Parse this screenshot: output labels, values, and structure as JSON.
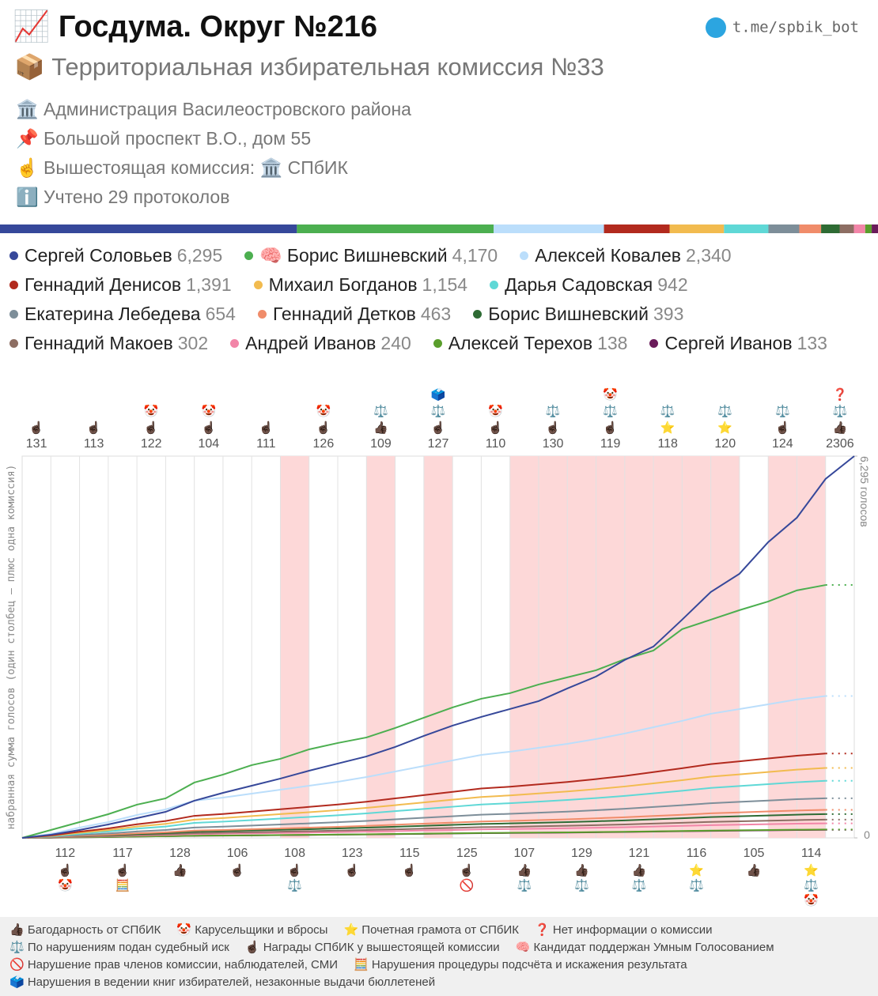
{
  "header": {
    "title": "📈 Госдума. Округ №216",
    "subtitle": "📦 Территориальная избирательная комиссия №33",
    "link": "t.me/spbik_bot",
    "info": [
      "🏛️ Администрация Василеостровского района",
      "📌 Большой проспект В.О., дом 55",
      "☝️ Вышестоящая комиссия: 🏛️ СПбИК",
      "ℹ️ Учтено 29 протоколов"
    ]
  },
  "chart_data": {
    "type": "line",
    "y_axis_label": "набранная сумма голосов (один столбец — плюс одна комиссия)",
    "ylim": [
      0,
      6295
    ],
    "yticks": [
      0,
      {
        "value": 6295,
        "label": "6,295 голосов"
      }
    ],
    "categories": [
      "131",
      "112",
      "113",
      "117",
      "122",
      "128",
      "104",
      "106",
      "111",
      "108",
      "126",
      "123",
      "109",
      "115",
      "127",
      "125",
      "110",
      "107",
      "130",
      "129",
      "119",
      "121",
      "118",
      "116",
      "120",
      "105",
      "124",
      "114",
      "2306"
    ],
    "icons": [
      [
        "☝🏿"
      ],
      [
        "☝🏿",
        "🤡"
      ],
      [
        "☝🏿"
      ],
      [
        "☝🏿",
        "🧮"
      ],
      [
        "☝🏿",
        "🤡"
      ],
      [
        "👍🏿"
      ],
      [
        "☝🏿",
        "🤡"
      ],
      [
        "☝🏿"
      ],
      [
        "☝🏿"
      ],
      [
        "☝🏿",
        "⚖️"
      ],
      [
        "☝🏿",
        "🤡"
      ],
      [
        "☝🏿"
      ],
      [
        "👍🏿",
        "⚖️"
      ],
      [
        "☝🏿"
      ],
      [
        "☝🏿",
        "⚖️",
        "🗳️"
      ],
      [
        "☝🏿",
        "🚫"
      ],
      [
        "☝🏿",
        "🤡"
      ],
      [
        "👍🏿",
        "⚖️"
      ],
      [
        "☝🏿",
        "⚖️"
      ],
      [
        "👍🏿",
        "⚖️"
      ],
      [
        "☝🏿",
        "⚖️",
        "🤡"
      ],
      [
        "👍🏿",
        "⚖️"
      ],
      [
        "⭐",
        "⚖️"
      ],
      [
        "⭐",
        "⚖️"
      ],
      [
        "⭐",
        "⚖️"
      ],
      [
        "👍🏿"
      ],
      [
        "☝🏿",
        "⚖️"
      ],
      [
        "⭐",
        "⚖️",
        "🤡"
      ],
      [
        "👍🏿",
        "⚖️",
        "❓"
      ]
    ],
    "flagged": [
      false,
      false,
      false,
      false,
      false,
      false,
      false,
      false,
      false,
      true,
      false,
      false,
      true,
      false,
      true,
      false,
      false,
      true,
      true,
      true,
      true,
      true,
      true,
      true,
      true,
      false,
      true,
      true,
      false
    ],
    "grid": true,
    "series": [
      {
        "name": "Сергей Соловьев",
        "color": "#36489a",
        "total": 6295,
        "total_label": "6,295",
        "values": [
          52,
          130,
          222,
          326,
          430,
          613,
          743,
          860,
          978,
          1108,
          1226,
          1343,
          1499,
          1682,
          1851,
          1995,
          2125,
          2256,
          2464,
          2660,
          2934,
          3155,
          3598,
          4055,
          4355,
          4876,
          5280,
          5919,
          6295
        ]
      },
      {
        "name": "Борис Вишневский",
        "badge": "🧠",
        "color": "#4caf50",
        "total": 4170,
        "total_label": "4,170",
        "values": [
          130,
          261,
          391,
          548,
          652,
          913,
          1043,
          1200,
          1304,
          1460,
          1565,
          1656,
          1812,
          1982,
          2151,
          2295,
          2386,
          2529,
          2647,
          2764,
          2947,
          3090,
          3442,
          3598,
          3755,
          3898,
          4081,
          4170,
          null
        ]
      },
      {
        "name": "Алексей Ковалев",
        "color": "#bbdefb",
        "total": 2340,
        "total_label": "2,340",
        "values": [
          65,
          170,
          261,
          378,
          469,
          613,
          665,
          730,
          795,
          860,
          926,
          1004,
          1095,
          1186,
          1278,
          1369,
          1421,
          1486,
          1551,
          1630,
          1721,
          1825,
          1930,
          2047,
          2125,
          2203,
          2282,
          2340,
          null
        ]
      },
      {
        "name": "Геннадий Денисов",
        "color": "#b22a1e",
        "total": 1391,
        "total_label": "1,391",
        "values": [
          39,
          102,
          156,
          225,
          278,
          364,
          395,
          434,
          473,
          511,
          551,
          597,
          651,
          705,
          759,
          814,
          844,
          883,
          922,
          970,
          1022,
          1085,
          1148,
          1217,
          1263,
          1310,
          1356,
          1391,
          null
        ]
      },
      {
        "name": "Михаил Богданов",
        "color": "#f2bb4f",
        "total": 1154,
        "total_label": "1,154",
        "values": [
          32,
          84,
          129,
          187,
          231,
          302,
          328,
          360,
          392,
          424,
          457,
          495,
          540,
          585,
          630,
          675,
          700,
          733,
          765,
          804,
          848,
          900,
          952,
          1010,
          1048,
          1087,
          1125,
          1154,
          null
        ]
      },
      {
        "name": "Дарья Садовская",
        "color": "#5fd8d6",
        "total": 942,
        "values": [
          26,
          69,
          106,
          153,
          188,
          247,
          268,
          294,
          320,
          346,
          373,
          404,
          441,
          478,
          514,
          551,
          572,
          598,
          625,
          657,
          692,
          735,
          777,
          824,
          855,
          887,
          918,
          942,
          null
        ]
      },
      {
        "name": "Екатерина Лебедева",
        "color": "#7d8e99",
        "total": 654,
        "values": [
          18,
          48,
          73,
          106,
          131,
          171,
          186,
          204,
          222,
          240,
          259,
          281,
          306,
          332,
          357,
          383,
          397,
          415,
          434,
          456,
          481,
          510,
          540,
          572,
          594,
          616,
          638,
          654,
          null
        ]
      },
      {
        "name": "Геннадий Детков",
        "color": "#f08c6a",
        "total": 463,
        "values": [
          13,
          34,
          52,
          75,
          93,
          121,
          131,
          144,
          157,
          170,
          183,
          199,
          217,
          235,
          253,
          271,
          281,
          294,
          307,
          323,
          340,
          361,
          382,
          405,
          420,
          436,
          451,
          463,
          null
        ]
      },
      {
        "name": "Борис Вишневский",
        "color": "#2e6b34",
        "total": 393,
        "values": [
          11,
          29,
          44,
          64,
          79,
          103,
          112,
          123,
          134,
          144,
          156,
          169,
          184,
          199,
          215,
          230,
          239,
          250,
          261,
          274,
          289,
          307,
          324,
          344,
          357,
          370,
          383,
          393,
          null
        ]
      },
      {
        "name": "Геннадий Макоев",
        "color": "#8d6e63",
        "total": 302,
        "values": [
          8,
          22,
          34,
          49,
          60,
          79,
          86,
          94,
          103,
          111,
          120,
          130,
          141,
          153,
          165,
          177,
          183,
          192,
          200,
          210,
          222,
          236,
          249,
          264,
          274,
          284,
          294,
          302,
          null
        ]
      },
      {
        "name": "Андрей Иванов",
        "color": "#f285a8",
        "total": 240,
        "values": [
          7,
          18,
          27,
          39,
          48,
          63,
          68,
          75,
          82,
          88,
          95,
          103,
          112,
          122,
          131,
          140,
          146,
          152,
          159,
          167,
          176,
          187,
          198,
          210,
          218,
          226,
          234,
          240,
          null
        ]
      },
      {
        "name": "Алексей Терехов",
        "color": "#5a9e2c",
        "total": 138,
        "values": [
          4,
          10,
          15,
          22,
          28,
          36,
          39,
          43,
          47,
          51,
          55,
          59,
          65,
          70,
          75,
          81,
          84,
          88,
          91,
          96,
          101,
          108,
          114,
          121,
          125,
          130,
          135,
          138,
          null
        ]
      },
      {
        "name": "Сергей Иванов",
        "color": "#6a1b5a",
        "total": 133,
        "values": [
          4,
          10,
          15,
          22,
          27,
          35,
          38,
          41,
          45,
          49,
          53,
          57,
          62,
          67,
          73,
          78,
          81,
          84,
          88,
          93,
          98,
          104,
          110,
          116,
          121,
          125,
          130,
          133,
          null
        ]
      }
    ]
  },
  "notes": [
    "👍🏿 Багодарность от СПбИК",
    "🤡 Карусельщики и вбросы",
    "⭐ Почетная грамота от СПбИК",
    "❓ Нет информации о комиссии",
    "⚖️ По нарушениям подан судебный иск",
    "☝🏿 Награды СПбИК у вышестоящей комиссии",
    "🧠 Кандидат поддержан Умным Голосованием",
    "🚫 Нарушение прав членов комиссии, наблюдателей, СМИ",
    "🧮 Нарушения процедуры подсчёта и искажения результата",
    "🗳️ Нарушения в ведении книг избирателей, незаконные выдачи бюллетеней"
  ]
}
